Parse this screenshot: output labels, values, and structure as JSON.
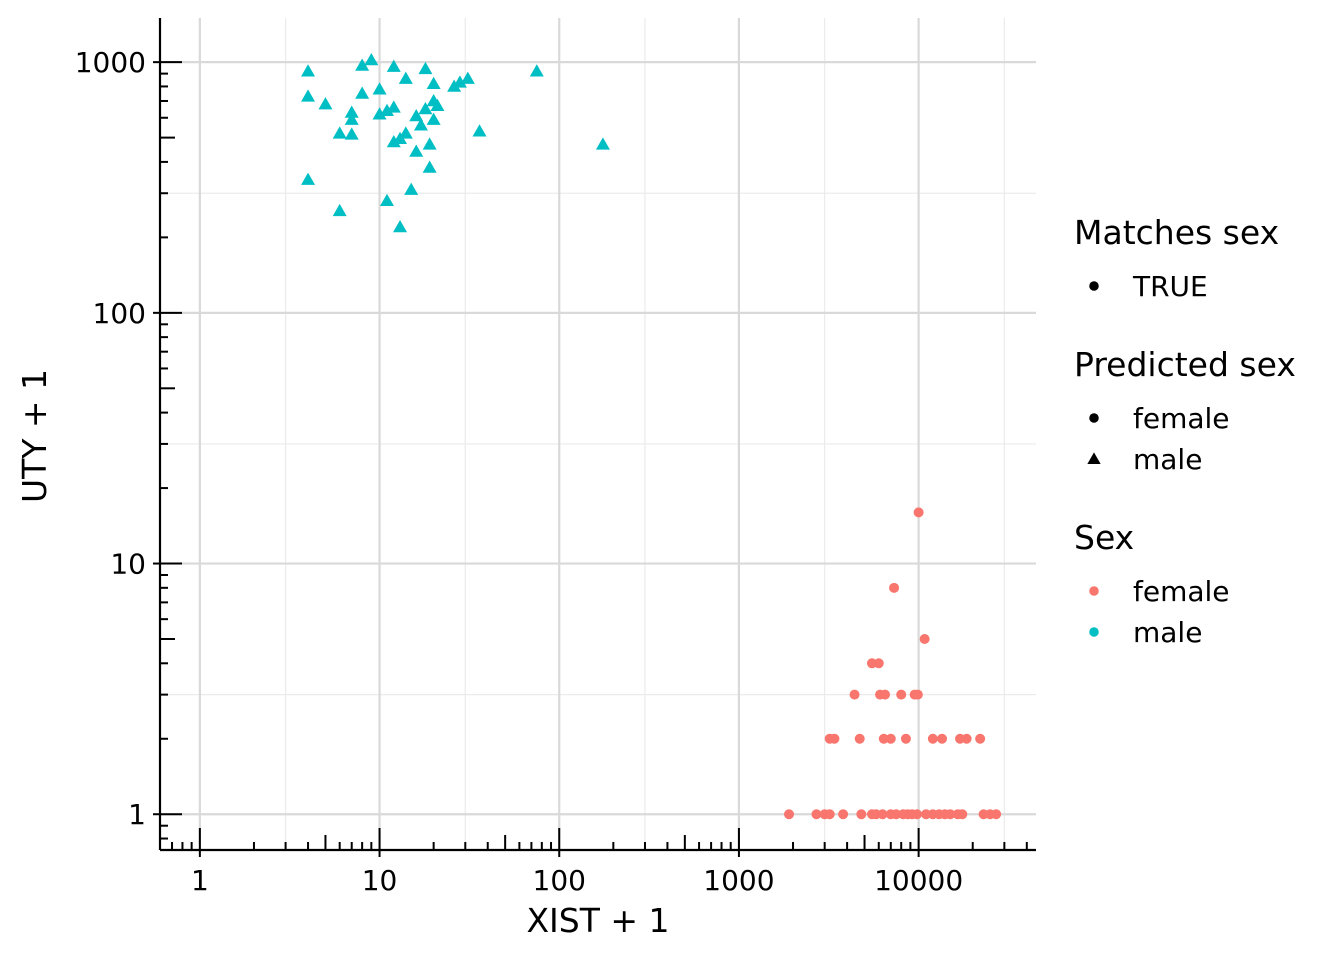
{
  "chart_data": {
    "type": "scatter",
    "xlabel": "XIST + 1",
    "ylabel": "UTY + 1",
    "xscale": "log10",
    "yscale": "log10",
    "xlim": [
      0.6,
      45000
    ],
    "ylim": [
      0.72,
      1500
    ],
    "x_ticks": [
      {
        "value": 1,
        "label": "1"
      },
      {
        "value": 10,
        "label": "10"
      },
      {
        "value": 100,
        "label": "100"
      },
      {
        "value": 1000,
        "label": "1000"
      },
      {
        "value": 10000,
        "label": "10000"
      }
    ],
    "y_ticks": [
      {
        "value": 1,
        "label": "1"
      },
      {
        "value": 10,
        "label": "10"
      },
      {
        "value": 100,
        "label": "100"
      },
      {
        "value": 1000,
        "label": "1000"
      }
    ],
    "grid": true,
    "legend_position": "right",
    "legends": [
      {
        "title": "Matches sex",
        "kind": "shape",
        "entries": [
          {
            "label": "TRUE",
            "shape": "circle",
            "color": "#000000"
          }
        ]
      },
      {
        "title": "Predicted sex",
        "kind": "shape",
        "entries": [
          {
            "label": "female",
            "shape": "circle",
            "color": "#000000"
          },
          {
            "label": "male",
            "shape": "triangle",
            "color": "#000000"
          }
        ]
      },
      {
        "title": "Sex",
        "kind": "color",
        "entries": [
          {
            "label": "female",
            "shape": "circle",
            "color": "#F8766D"
          },
          {
            "label": "male",
            "shape": "circle",
            "color": "#00BFC4"
          }
        ]
      }
    ],
    "series": [
      {
        "name": "male",
        "color": "#00BFC4",
        "shape": "triangle",
        "points": [
          [
            4,
            920
          ],
          [
            4,
            730
          ],
          [
            4,
            340
          ],
          [
            5,
            680
          ],
          [
            6,
            520
          ],
          [
            6,
            255
          ],
          [
            7,
            630
          ],
          [
            7,
            590
          ],
          [
            7,
            515
          ],
          [
            8,
            970
          ],
          [
            8,
            750
          ],
          [
            9,
            1020
          ],
          [
            10,
            780
          ],
          [
            10,
            620
          ],
          [
            11,
            640
          ],
          [
            11,
            280
          ],
          [
            12,
            960
          ],
          [
            12,
            660
          ],
          [
            12,
            480
          ],
          [
            13,
            495
          ],
          [
            13,
            220
          ],
          [
            14,
            860
          ],
          [
            14,
            520
          ],
          [
            15,
            310
          ],
          [
            16,
            610
          ],
          [
            16,
            440
          ],
          [
            17,
            560
          ],
          [
            18,
            940
          ],
          [
            18,
            650
          ],
          [
            19,
            470
          ],
          [
            19,
            380
          ],
          [
            20,
            820
          ],
          [
            20,
            590
          ],
          [
            20,
            700
          ],
          [
            21,
            670
          ],
          [
            26,
            800
          ],
          [
            28,
            830
          ],
          [
            31,
            860
          ],
          [
            36,
            530
          ],
          [
            75,
            920
          ],
          [
            175,
            470
          ]
        ]
      },
      {
        "name": "female",
        "color": "#F8766D",
        "shape": "circle",
        "points": [
          [
            10000,
            16
          ],
          [
            7300,
            8
          ],
          [
            10800,
            5
          ],
          [
            5500,
            4
          ],
          [
            6000,
            4
          ],
          [
            4400,
            3
          ],
          [
            6100,
            3
          ],
          [
            6500,
            3
          ],
          [
            8000,
            3
          ],
          [
            9500,
            3
          ],
          [
            9900,
            3
          ],
          [
            3200,
            2
          ],
          [
            3400,
            2
          ],
          [
            4700,
            2
          ],
          [
            6400,
            2
          ],
          [
            7000,
            2
          ],
          [
            8500,
            2
          ],
          [
            12000,
            2
          ],
          [
            13500,
            2
          ],
          [
            17000,
            2
          ],
          [
            18500,
            2
          ],
          [
            22000,
            2
          ],
          [
            1900,
            1
          ],
          [
            2700,
            1
          ],
          [
            3000,
            1
          ],
          [
            3200,
            1
          ],
          [
            3800,
            1
          ],
          [
            4800,
            1
          ],
          [
            5500,
            1
          ],
          [
            5800,
            1
          ],
          [
            6300,
            1
          ],
          [
            7000,
            1
          ],
          [
            7500,
            1
          ],
          [
            8200,
            1
          ],
          [
            8700,
            1
          ],
          [
            9200,
            1
          ],
          [
            9800,
            1
          ],
          [
            11000,
            1
          ],
          [
            12000,
            1
          ],
          [
            13000,
            1
          ],
          [
            14000,
            1
          ],
          [
            15000,
            1
          ],
          [
            16500,
            1
          ],
          [
            17500,
            1
          ],
          [
            23000,
            1
          ],
          [
            25000,
            1
          ],
          [
            27000,
            1
          ]
        ]
      }
    ]
  }
}
